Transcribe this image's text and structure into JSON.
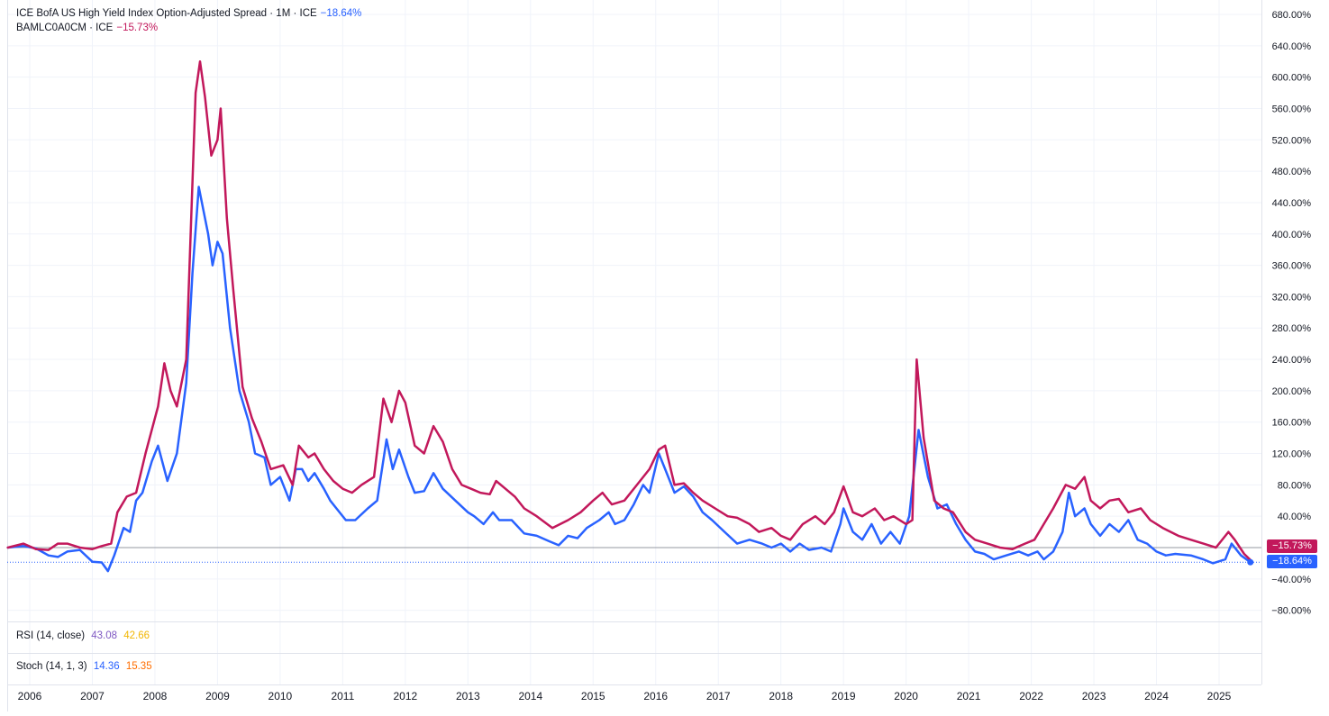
{
  "legend": {
    "series1_title": "ICE BofA US High Yield Index Option-Adjusted Spread · 1M · ICE",
    "series1_value": "−18.64%",
    "series2_title": "BAMLC0A0CM · ICE",
    "series2_value": "−15.73%"
  },
  "indicators": {
    "rsi_label": "RSI (14, close)",
    "rsi_value1": "43.08",
    "rsi_value2": "42.66",
    "stoch_label": "Stoch (14, 1, 3)",
    "stoch_value1": "14.36",
    "stoch_value2": "15.35"
  },
  "price_tags": {
    "series2": "−15.73%",
    "series1": "−18.64%"
  },
  "colors": {
    "series1": "#2962ff",
    "series2": "#c2185b",
    "rsi_value1": "#7e57c2",
    "rsi_value2": "#f2b705",
    "stoch_value1": "#2962ff",
    "stoch_value2": "#ff6d00",
    "grid": "#f0f3fa"
  },
  "chart_data": {
    "type": "line",
    "y_unit": "%",
    "ylim": [
      -95,
      690
    ],
    "y_ticks": [
      "680.00%",
      "640.00%",
      "600.00%",
      "560.00%",
      "520.00%",
      "480.00%",
      "440.00%",
      "400.00%",
      "360.00%",
      "320.00%",
      "280.00%",
      "240.00%",
      "200.00%",
      "160.00%",
      "120.00%",
      "80.00%",
      "40.00%",
      "−40.00%",
      "−80.00%"
    ],
    "y_tick_values": [
      680,
      640,
      600,
      560,
      520,
      480,
      440,
      400,
      360,
      320,
      280,
      240,
      200,
      160,
      120,
      80,
      40,
      -40,
      -80
    ],
    "x_ticks": [
      "2006",
      "2007",
      "2008",
      "2009",
      "2010",
      "2011",
      "2012",
      "2013",
      "2014",
      "2015",
      "2016",
      "2017",
      "2018",
      "2019",
      "2020",
      "2021",
      "2022",
      "2023",
      "2024",
      "2025"
    ],
    "x_tick_values": [
      2006,
      2007,
      2008,
      2009,
      2010,
      2011,
      2012,
      2013,
      2014,
      2015,
      2016,
      2017,
      2018,
      2019,
      2020,
      2021,
      2022,
      2023,
      2024,
      2025
    ],
    "grid": true,
    "baseline": 0,
    "series": [
      {
        "points": [
          [
            2005.65,
            0
          ],
          [
            2005.9,
            2
          ],
          [
            2006.1,
            -1
          ],
          [
            2006.3,
            -10
          ],
          [
            2006.45,
            -12
          ],
          [
            2006.6,
            -5
          ],
          [
            2006.8,
            -3
          ],
          [
            2007.0,
            -18
          ],
          [
            2007.15,
            -19
          ],
          [
            2007.25,
            -30
          ],
          [
            2007.35,
            -10
          ],
          [
            2007.5,
            25
          ],
          [
            2007.6,
            20
          ],
          [
            2007.7,
            60
          ],
          [
            2007.8,
            70
          ],
          [
            2007.95,
            110
          ],
          [
            2008.05,
            130
          ],
          [
            2008.2,
            85
          ],
          [
            2008.35,
            120
          ],
          [
            2008.5,
            210
          ],
          [
            2008.6,
            350
          ],
          [
            2008.7,
            460
          ],
          [
            2008.85,
            400
          ],
          [
            2008.92,
            360
          ],
          [
            2009.0,
            390
          ],
          [
            2009.08,
            375
          ],
          [
            2009.2,
            280
          ],
          [
            2009.35,
            200
          ],
          [
            2009.5,
            160
          ],
          [
            2009.6,
            120
          ],
          [
            2009.75,
            115
          ],
          [
            2009.85,
            80
          ],
          [
            2010.0,
            90
          ],
          [
            2010.15,
            60
          ],
          [
            2010.25,
            100
          ],
          [
            2010.35,
            100
          ],
          [
            2010.45,
            85
          ],
          [
            2010.55,
            95
          ],
          [
            2010.7,
            75
          ],
          [
            2010.8,
            60
          ],
          [
            2010.9,
            50
          ],
          [
            2011.05,
            35
          ],
          [
            2011.2,
            35
          ],
          [
            2011.4,
            50
          ],
          [
            2011.55,
            60
          ],
          [
            2011.7,
            138
          ],
          [
            2011.8,
            100
          ],
          [
            2011.9,
            125
          ],
          [
            2012.05,
            90
          ],
          [
            2012.15,
            70
          ],
          [
            2012.3,
            72
          ],
          [
            2012.45,
            95
          ],
          [
            2012.6,
            75
          ],
          [
            2012.8,
            60
          ],
          [
            2013.0,
            45
          ],
          [
            2013.1,
            40
          ],
          [
            2013.25,
            30
          ],
          [
            2013.4,
            45
          ],
          [
            2013.5,
            35
          ],
          [
            2013.7,
            35
          ],
          [
            2013.9,
            18
          ],
          [
            2014.1,
            15
          ],
          [
            2014.3,
            8
          ],
          [
            2014.45,
            3
          ],
          [
            2014.6,
            15
          ],
          [
            2014.75,
            12
          ],
          [
            2014.9,
            25
          ],
          [
            2015.1,
            35
          ],
          [
            2015.25,
            45
          ],
          [
            2015.35,
            30
          ],
          [
            2015.5,
            35
          ],
          [
            2015.65,
            55
          ],
          [
            2015.8,
            80
          ],
          [
            2015.9,
            70
          ],
          [
            2016.05,
            120
          ],
          [
            2016.15,
            100
          ],
          [
            2016.3,
            70
          ],
          [
            2016.45,
            78
          ],
          [
            2016.6,
            65
          ],
          [
            2016.75,
            45
          ],
          [
            2016.9,
            35
          ],
          [
            2017.1,
            20
          ],
          [
            2017.3,
            5
          ],
          [
            2017.5,
            10
          ],
          [
            2017.7,
            5
          ],
          [
            2017.85,
            0
          ],
          [
            2018.0,
            5
          ],
          [
            2018.15,
            -5
          ],
          [
            2018.3,
            5
          ],
          [
            2018.45,
            -3
          ],
          [
            2018.65,
            0
          ],
          [
            2018.8,
            -5
          ],
          [
            2018.95,
            30
          ],
          [
            2019.0,
            50
          ],
          [
            2019.15,
            20
          ],
          [
            2019.3,
            10
          ],
          [
            2019.45,
            30
          ],
          [
            2019.6,
            5
          ],
          [
            2019.75,
            20
          ],
          [
            2019.9,
            5
          ],
          [
            2020.05,
            40
          ],
          [
            2020.2,
            150
          ],
          [
            2020.35,
            90
          ],
          [
            2020.5,
            50
          ],
          [
            2020.65,
            55
          ],
          [
            2020.8,
            30
          ],
          [
            2020.95,
            10
          ],
          [
            2021.1,
            -5
          ],
          [
            2021.25,
            -8
          ],
          [
            2021.4,
            -15
          ],
          [
            2021.6,
            -10
          ],
          [
            2021.8,
            -5
          ],
          [
            2021.95,
            -10
          ],
          [
            2022.1,
            -5
          ],
          [
            2022.2,
            -15
          ],
          [
            2022.35,
            -5
          ],
          [
            2022.5,
            20
          ],
          [
            2022.6,
            70
          ],
          [
            2022.7,
            40
          ],
          [
            2022.85,
            50
          ],
          [
            2022.95,
            30
          ],
          [
            2023.1,
            15
          ],
          [
            2023.25,
            30
          ],
          [
            2023.4,
            20
          ],
          [
            2023.55,
            35
          ],
          [
            2023.7,
            10
          ],
          [
            2023.85,
            5
          ],
          [
            2024.0,
            -5
          ],
          [
            2024.15,
            -10
          ],
          [
            2024.3,
            -8
          ],
          [
            2024.55,
            -10
          ],
          [
            2024.75,
            -15
          ],
          [
            2024.9,
            -20
          ],
          [
            2025.1,
            -15
          ],
          [
            2025.2,
            5
          ],
          [
            2025.35,
            -10
          ],
          [
            2025.5,
            -18.64
          ]
        ]
      },
      {
        "points": [
          [
            2005.65,
            0
          ],
          [
            2005.9,
            5
          ],
          [
            2006.1,
            -2
          ],
          [
            2006.3,
            -3
          ],
          [
            2006.45,
            5
          ],
          [
            2006.6,
            5
          ],
          [
            2006.8,
            0
          ],
          [
            2007.0,
            -2
          ],
          [
            2007.15,
            2
          ],
          [
            2007.3,
            5
          ],
          [
            2007.4,
            45
          ],
          [
            2007.55,
            65
          ],
          [
            2007.7,
            70
          ],
          [
            2007.85,
            120
          ],
          [
            2008.05,
            180
          ],
          [
            2008.15,
            235
          ],
          [
            2008.25,
            200
          ],
          [
            2008.35,
            180
          ],
          [
            2008.5,
            240
          ],
          [
            2008.65,
            580
          ],
          [
            2008.72,
            620
          ],
          [
            2008.8,
            575
          ],
          [
            2008.9,
            500
          ],
          [
            2009.0,
            520
          ],
          [
            2009.05,
            560
          ],
          [
            2009.15,
            420
          ],
          [
            2009.25,
            330
          ],
          [
            2009.4,
            205
          ],
          [
            2009.55,
            165
          ],
          [
            2009.7,
            135
          ],
          [
            2009.85,
            100
          ],
          [
            2010.05,
            105
          ],
          [
            2010.2,
            80
          ],
          [
            2010.3,
            130
          ],
          [
            2010.45,
            115
          ],
          [
            2010.55,
            120
          ],
          [
            2010.7,
            100
          ],
          [
            2010.85,
            85
          ],
          [
            2011.0,
            75
          ],
          [
            2011.15,
            70
          ],
          [
            2011.3,
            80
          ],
          [
            2011.5,
            90
          ],
          [
            2011.65,
            190
          ],
          [
            2011.78,
            160
          ],
          [
            2011.9,
            200
          ],
          [
            2012.0,
            185
          ],
          [
            2012.15,
            130
          ],
          [
            2012.3,
            120
          ],
          [
            2012.45,
            155
          ],
          [
            2012.6,
            135
          ],
          [
            2012.75,
            100
          ],
          [
            2012.9,
            80
          ],
          [
            2013.05,
            75
          ],
          [
            2013.2,
            70
          ],
          [
            2013.35,
            68
          ],
          [
            2013.45,
            85
          ],
          [
            2013.6,
            75
          ],
          [
            2013.75,
            65
          ],
          [
            2013.9,
            50
          ],
          [
            2014.1,
            40
          ],
          [
            2014.35,
            25
          ],
          [
            2014.6,
            35
          ],
          [
            2014.8,
            45
          ],
          [
            2015.0,
            60
          ],
          [
            2015.15,
            70
          ],
          [
            2015.3,
            55
          ],
          [
            2015.5,
            60
          ],
          [
            2015.7,
            80
          ],
          [
            2015.9,
            100
          ],
          [
            2016.05,
            125
          ],
          [
            2016.15,
            130
          ],
          [
            2016.3,
            80
          ],
          [
            2016.45,
            82
          ],
          [
            2016.6,
            70
          ],
          [
            2016.75,
            60
          ],
          [
            2016.95,
            50
          ],
          [
            2017.15,
            40
          ],
          [
            2017.3,
            38
          ],
          [
            2017.5,
            30
          ],
          [
            2017.65,
            20
          ],
          [
            2017.85,
            25
          ],
          [
            2018.0,
            15
          ],
          [
            2018.15,
            10
          ],
          [
            2018.35,
            30
          ],
          [
            2018.55,
            40
          ],
          [
            2018.7,
            30
          ],
          [
            2018.85,
            45
          ],
          [
            2019.0,
            78
          ],
          [
            2019.15,
            45
          ],
          [
            2019.3,
            40
          ],
          [
            2019.5,
            50
          ],
          [
            2019.65,
            35
          ],
          [
            2019.8,
            40
          ],
          [
            2020.0,
            30
          ],
          [
            2020.1,
            35
          ],
          [
            2020.17,
            240
          ],
          [
            2020.28,
            140
          ],
          [
            2020.45,
            60
          ],
          [
            2020.6,
            50
          ],
          [
            2020.75,
            45
          ],
          [
            2020.95,
            20
          ],
          [
            2021.1,
            10
          ],
          [
            2021.3,
            5
          ],
          [
            2021.5,
            0
          ],
          [
            2021.7,
            -2
          ],
          [
            2021.9,
            5
          ],
          [
            2022.05,
            10
          ],
          [
            2022.2,
            30
          ],
          [
            2022.35,
            50
          ],
          [
            2022.55,
            80
          ],
          [
            2022.7,
            75
          ],
          [
            2022.85,
            90
          ],
          [
            2022.95,
            60
          ],
          [
            2023.1,
            50
          ],
          [
            2023.25,
            60
          ],
          [
            2023.4,
            62
          ],
          [
            2023.55,
            45
          ],
          [
            2023.75,
            50
          ],
          [
            2023.9,
            35
          ],
          [
            2024.1,
            25
          ],
          [
            2024.35,
            15
          ],
          [
            2024.55,
            10
          ],
          [
            2024.75,
            5
          ],
          [
            2024.95,
            0
          ],
          [
            2025.15,
            20
          ],
          [
            2025.25,
            10
          ],
          [
            2025.4,
            -8
          ],
          [
            2025.5,
            -15.73
          ]
        ]
      }
    ]
  }
}
